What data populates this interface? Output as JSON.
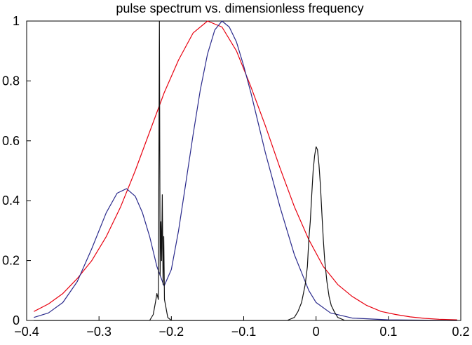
{
  "chart_data": {
    "type": "line",
    "title": "pulse spectrum vs. dimensionless frequency",
    "xlabel": "",
    "ylabel": "",
    "xlim": [
      -0.4,
      0.2
    ],
    "ylim": [
      0,
      1
    ],
    "grid": false,
    "x_ticks": [
      {
        "value": -0.4,
        "label": "−0.4"
      },
      {
        "value": -0.3,
        "label": "−0.3"
      },
      {
        "value": -0.2,
        "label": "−0.2"
      },
      {
        "value": -0.1,
        "label": "−0.1"
      },
      {
        "value": 0,
        "label": "0"
      },
      {
        "value": 0.1,
        "label": "0.1"
      },
      {
        "value": 0.2,
        "label": "0.2"
      }
    ],
    "y_ticks": [
      {
        "value": 0,
        "label": "0"
      },
      {
        "value": 0.2,
        "label": "0.2"
      },
      {
        "value": 0.4,
        "label": "0.4"
      },
      {
        "value": 0.6,
        "label": "0.6"
      },
      {
        "value": 0.8,
        "label": "0.8"
      },
      {
        "value": 1,
        "label": "1"
      }
    ],
    "series": [
      {
        "color": "#e8000f",
        "x": [
          -0.39,
          -0.37,
          -0.35,
          -0.33,
          -0.31,
          -0.29,
          -0.27,
          -0.25,
          -0.23,
          -0.21,
          -0.19,
          -0.17,
          -0.15,
          -0.13,
          -0.11,
          -0.09,
          -0.07,
          -0.05,
          -0.03,
          -0.01,
          0.01,
          0.03,
          0.05,
          0.07,
          0.09,
          0.11,
          0.13,
          0.15,
          0.17,
          0.195
        ],
        "y": [
          0.03,
          0.055,
          0.09,
          0.14,
          0.2,
          0.28,
          0.38,
          0.5,
          0.63,
          0.76,
          0.87,
          0.96,
          1.0,
          0.98,
          0.9,
          0.78,
          0.65,
          0.51,
          0.38,
          0.27,
          0.18,
          0.12,
          0.08,
          0.05,
          0.03,
          0.02,
          0.012,
          0.007,
          0.004,
          0.002
        ]
      },
      {
        "color": "#2a2a8c",
        "x": [
          -0.39,
          -0.37,
          -0.35,
          -0.33,
          -0.31,
          -0.29,
          -0.275,
          -0.262,
          -0.25,
          -0.24,
          -0.23,
          -0.22,
          -0.21,
          -0.2,
          -0.19,
          -0.18,
          -0.17,
          -0.16,
          -0.15,
          -0.14,
          -0.13,
          -0.12,
          -0.11,
          -0.1,
          -0.09,
          -0.08,
          -0.07,
          -0.06,
          -0.05,
          -0.04,
          -0.03,
          -0.02,
          -0.01,
          0.0,
          0.02,
          0.05,
          0.1,
          0.15,
          0.195
        ],
        "y": [
          0.01,
          0.025,
          0.06,
          0.13,
          0.24,
          0.36,
          0.425,
          0.44,
          0.415,
          0.36,
          0.28,
          0.18,
          0.115,
          0.17,
          0.3,
          0.46,
          0.62,
          0.77,
          0.89,
          0.97,
          1.0,
          0.98,
          0.93,
          0.85,
          0.76,
          0.66,
          0.56,
          0.47,
          0.38,
          0.3,
          0.22,
          0.16,
          0.1,
          0.06,
          0.025,
          0.008,
          0.002,
          0.001,
          0.0
        ]
      },
      {
        "color": "#111111",
        "x": [
          -0.39,
          -0.3,
          -0.23,
          -0.225,
          -0.222,
          -0.22,
          -0.218,
          -0.2165,
          -0.2155,
          -0.2145,
          -0.2135,
          -0.2125,
          -0.2115,
          -0.2105,
          -0.2095,
          -0.208,
          -0.205,
          -0.2,
          -0.1,
          -0.04,
          -0.03,
          -0.025,
          -0.02,
          -0.015,
          -0.012,
          -0.01,
          -0.008,
          -0.006,
          -0.004,
          -0.002,
          0.0,
          0.002,
          0.004,
          0.006,
          0.008,
          0.01,
          0.012,
          0.015,
          0.018,
          0.021,
          0.025,
          0.03,
          0.04,
          0.1,
          0.195
        ],
        "y": [
          0.0,
          0.0,
          0.0,
          0.02,
          0.06,
          0.09,
          0.07,
          1.0,
          0.15,
          0.33,
          0.2,
          0.42,
          0.12,
          0.28,
          0.07,
          0.05,
          0.01,
          0.0,
          0.0,
          0.0,
          0.01,
          0.03,
          0.06,
          0.12,
          0.18,
          0.27,
          0.33,
          0.42,
          0.5,
          0.55,
          0.58,
          0.57,
          0.52,
          0.45,
          0.36,
          0.27,
          0.2,
          0.13,
          0.08,
          0.05,
          0.03,
          0.01,
          0.0,
          0.0,
          0.0
        ]
      }
    ]
  }
}
